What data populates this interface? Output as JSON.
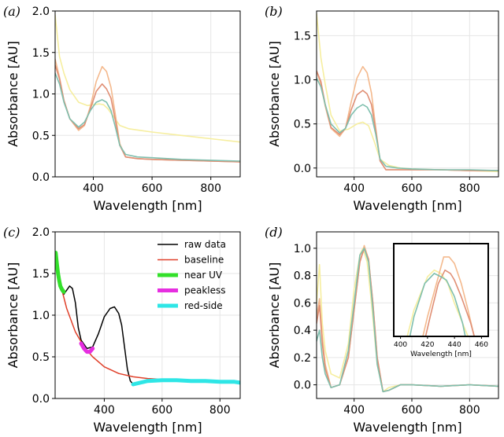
{
  "chart_data": [
    {
      "type": "line",
      "panel_label": "(a)",
      "xlabel": "Wavelength [nm]",
      "ylabel": "Absorbance [AU]",
      "xlim": [
        270,
        900
      ],
      "ylim": [
        0,
        2.0
      ],
      "xticks": [
        400,
        600,
        800
      ],
      "yticks": [
        0.0,
        0.5,
        1.0,
        1.5,
        2.0
      ],
      "grid": true,
      "series": [
        {
          "color": "#f6ee9f",
          "x": [
            270,
            285,
            300,
            320,
            350,
            380,
            400,
            420,
            435,
            450,
            470,
            490,
            520,
            560,
            600,
            700,
            800,
            900
          ],
          "y": [
            1.95,
            1.45,
            1.25,
            1.05,
            0.9,
            0.86,
            0.87,
            0.88,
            0.87,
            0.82,
            0.72,
            0.62,
            0.58,
            0.56,
            0.54,
            0.5,
            0.46,
            0.42
          ]
        },
        {
          "color": "#f4b98d",
          "x": [
            270,
            285,
            300,
            320,
            350,
            370,
            390,
            410,
            430,
            445,
            460,
            475,
            490,
            510,
            550,
            600,
            700,
            800,
            900
          ],
          "y": [
            1.42,
            1.2,
            0.92,
            0.7,
            0.56,
            0.62,
            0.85,
            1.15,
            1.33,
            1.27,
            1.08,
            0.75,
            0.4,
            0.24,
            0.22,
            0.21,
            0.2,
            0.19,
            0.18
          ]
        },
        {
          "color": "#e08f75",
          "x": [
            270,
            285,
            300,
            320,
            350,
            370,
            390,
            410,
            430,
            445,
            460,
            475,
            490,
            510,
            550,
            600,
            700,
            800,
            900
          ],
          "y": [
            1.35,
            1.18,
            0.92,
            0.7,
            0.58,
            0.63,
            0.82,
            1.03,
            1.12,
            1.06,
            0.95,
            0.68,
            0.38,
            0.24,
            0.22,
            0.21,
            0.2,
            0.19,
            0.18
          ]
        },
        {
          "color": "#7fbfae",
          "x": [
            270,
            285,
            300,
            320,
            350,
            370,
            390,
            410,
            430,
            445,
            460,
            475,
            490,
            510,
            550,
            600,
            700,
            800,
            900
          ],
          "y": [
            1.25,
            1.12,
            0.9,
            0.7,
            0.6,
            0.66,
            0.8,
            0.9,
            0.93,
            0.9,
            0.8,
            0.6,
            0.38,
            0.27,
            0.24,
            0.23,
            0.21,
            0.2,
            0.19
          ]
        }
      ]
    },
    {
      "type": "line",
      "panel_label": "(b)",
      "xlabel": "Wavelength [nm]",
      "ylabel": "Absorbance [AU]",
      "xlim": [
        270,
        900
      ],
      "ylim": [
        -0.1,
        1.78
      ],
      "xticks": [
        400,
        600,
        800
      ],
      "yticks": [
        0.0,
        0.5,
        1.0,
        1.5
      ],
      "grid": true,
      "series": [
        {
          "color": "#f6ee9f",
          "x": [
            270,
            285,
            300,
            320,
            350,
            380,
            410,
            430,
            450,
            470,
            490,
            520,
            560,
            600,
            700,
            800,
            900
          ],
          "y": [
            1.75,
            1.25,
            0.95,
            0.6,
            0.42,
            0.44,
            0.5,
            0.52,
            0.48,
            0.3,
            0.1,
            0.03,
            0.0,
            -0.01,
            -0.02,
            -0.03,
            -0.04
          ]
        },
        {
          "color": "#f4b98d",
          "x": [
            270,
            285,
            300,
            320,
            350,
            370,
            390,
            410,
            430,
            445,
            460,
            475,
            490,
            510,
            550,
            600,
            700,
            800,
            900
          ],
          "y": [
            1.1,
            0.95,
            0.7,
            0.45,
            0.36,
            0.45,
            0.75,
            1.02,
            1.15,
            1.08,
            0.85,
            0.45,
            0.08,
            -0.02,
            -0.02,
            -0.02,
            -0.02,
            -0.03,
            -0.03
          ]
        },
        {
          "color": "#e08f75",
          "x": [
            270,
            285,
            300,
            320,
            350,
            370,
            390,
            410,
            430,
            445,
            460,
            475,
            490,
            510,
            550,
            600,
            700,
            800,
            900
          ],
          "y": [
            1.1,
            0.98,
            0.72,
            0.46,
            0.38,
            0.45,
            0.66,
            0.83,
            0.88,
            0.84,
            0.72,
            0.42,
            0.08,
            -0.02,
            -0.02,
            -0.02,
            -0.02,
            -0.03,
            -0.03
          ]
        },
        {
          "color": "#7fbfae",
          "x": [
            270,
            285,
            300,
            320,
            350,
            370,
            390,
            410,
            430,
            445,
            460,
            475,
            490,
            510,
            550,
            600,
            700,
            800,
            900
          ],
          "y": [
            1.02,
            0.92,
            0.72,
            0.5,
            0.4,
            0.45,
            0.6,
            0.68,
            0.72,
            0.69,
            0.6,
            0.38,
            0.1,
            0.02,
            0.0,
            -0.01,
            -0.02,
            -0.02,
            -0.03
          ]
        }
      ]
    },
    {
      "type": "line",
      "panel_label": "(c)",
      "xlabel": "Wavelength [nm]",
      "ylabel": "Absorbance [AU]",
      "xlim": [
        230,
        870
      ],
      "ylim": [
        0,
        2.0
      ],
      "xticks": [
        400,
        600,
        800
      ],
      "yticks": [
        0.0,
        0.5,
        1.0,
        1.5,
        2.0
      ],
      "grid": true,
      "legend": "top-right",
      "series": [
        {
          "name": "raw data",
          "color": "#000000",
          "width": 1.5,
          "x": [
            232,
            240,
            250,
            260,
            270,
            280,
            290,
            300,
            310,
            320,
            340,
            360,
            380,
            400,
            420,
            435,
            450,
            460,
            470,
            480,
            490,
            500,
            520,
            560,
            600,
            700,
            800,
            870
          ],
          "y": [
            1.75,
            1.5,
            1.3,
            1.25,
            1.3,
            1.35,
            1.32,
            1.15,
            0.85,
            0.7,
            0.6,
            0.62,
            0.78,
            0.98,
            1.08,
            1.1,
            1.02,
            0.88,
            0.62,
            0.35,
            0.21,
            0.17,
            0.19,
            0.22,
            0.23,
            0.22,
            0.21,
            0.2
          ]
        },
        {
          "name": "baseline",
          "color": "#e0402a",
          "width": 1.5,
          "x": [
            232,
            250,
            270,
            300,
            330,
            360,
            400,
            450,
            500,
            550,
            600,
            700,
            800,
            870
          ],
          "y": [
            1.7,
            1.35,
            1.08,
            0.8,
            0.62,
            0.5,
            0.38,
            0.3,
            0.26,
            0.24,
            0.23,
            0.21,
            0.2,
            0.19
          ]
        },
        {
          "name": "near UV",
          "color": "#33e02a",
          "width": 5,
          "x": [
            232,
            236,
            240,
            244,
            248,
            252,
            256,
            260
          ],
          "y": [
            1.75,
            1.62,
            1.5,
            1.42,
            1.35,
            1.32,
            1.3,
            1.28
          ]
        },
        {
          "name": "peakless",
          "color": "#e62ee0",
          "width": 5,
          "x": [
            320,
            330,
            340,
            350,
            360
          ],
          "y": [
            0.66,
            0.6,
            0.56,
            0.56,
            0.6
          ]
        },
        {
          "name": "red-side",
          "color": "#2ee6e6",
          "width": 5,
          "x": [
            500,
            550,
            600,
            650,
            700,
            750,
            800,
            850,
            870
          ],
          "y": [
            0.17,
            0.21,
            0.22,
            0.22,
            0.21,
            0.21,
            0.2,
            0.2,
            0.19
          ]
        }
      ]
    },
    {
      "type": "line",
      "panel_label": "(d)",
      "xlabel": "Wavelength [nm]",
      "ylabel": "Absorbance [AU]",
      "xlim": [
        270,
        900
      ],
      "ylim": [
        -0.1,
        1.12
      ],
      "xticks": [
        400,
        600,
        800
      ],
      "yticks": [
        0.0,
        0.2,
        0.4,
        0.6,
        0.8,
        1.0
      ],
      "grid": true,
      "series": [
        {
          "color": "#f6ee9f",
          "x": [
            270,
            280,
            290,
            300,
            320,
            350,
            380,
            400,
            420,
            430,
            445,
            460,
            480,
            500,
            520,
            560,
            600,
            700,
            800,
            900
          ],
          "y": [
            0.6,
            0.88,
            0.45,
            0.25,
            0.08,
            0.05,
            0.3,
            0.7,
            0.95,
            1.0,
            0.9,
            0.6,
            0.15,
            -0.05,
            -0.02,
            0.0,
            0.0,
            -0.01,
            0.0,
            -0.01
          ]
        },
        {
          "color": "#f4b98d",
          "x": [
            270,
            280,
            290,
            300,
            320,
            350,
            380,
            400,
            420,
            435,
            450,
            465,
            480,
            500,
            520,
            560,
            600,
            700,
            800,
            900
          ],
          "y": [
            0.5,
            0.63,
            0.35,
            0.15,
            -0.02,
            0.0,
            0.2,
            0.55,
            0.9,
            1.02,
            0.92,
            0.6,
            0.2,
            -0.05,
            -0.04,
            0.0,
            0.0,
            -0.01,
            0.0,
            -0.01
          ]
        },
        {
          "color": "#e08f75",
          "x": [
            270,
            280,
            290,
            300,
            320,
            350,
            380,
            400,
            420,
            435,
            450,
            465,
            480,
            500,
            520,
            560,
            600,
            700,
            800,
            900
          ],
          "y": [
            0.45,
            0.58,
            0.3,
            0.12,
            -0.02,
            0.0,
            0.2,
            0.55,
            0.9,
            1.0,
            0.92,
            0.6,
            0.2,
            -0.05,
            -0.04,
            0.0,
            0.0,
            -0.01,
            0.0,
            -0.01
          ]
        },
        {
          "color": "#7fbfae",
          "x": [
            270,
            280,
            290,
            300,
            320,
            350,
            380,
            400,
            420,
            435,
            450,
            465,
            480,
            500,
            520,
            560,
            600,
            700,
            800,
            900
          ],
          "y": [
            0.32,
            0.4,
            0.2,
            0.08,
            -0.02,
            0.0,
            0.25,
            0.6,
            0.95,
            1.0,
            0.9,
            0.55,
            0.15,
            -0.05,
            -0.04,
            0.0,
            0.0,
            -0.01,
            0.0,
            -0.01
          ]
        }
      ],
      "inset": {
        "xlabel": "Wavelength [nm]",
        "xlim": [
          395,
          465
        ],
        "ylim": [
          0.9,
          1.04
        ],
        "xticks": [
          400,
          420,
          440,
          460
        ],
        "series": [
          {
            "color": "#f6ee9f",
            "x": [
              400,
              410,
              420,
              425,
              430,
              435,
              440,
              450,
              458
            ],
            "y": [
              0.86,
              0.94,
              0.99,
              1.0,
              0.995,
              0.98,
              0.95,
              0.9,
              0.86
            ]
          },
          {
            "color": "#f4b98d",
            "x": [
              412,
              420,
              428,
              432,
              436,
              440,
              445,
              450,
              458
            ],
            "y": [
              0.86,
              0.93,
              0.99,
              1.02,
              1.02,
              1.01,
              0.98,
              0.94,
              0.87
            ]
          },
          {
            "color": "#e08f75",
            "x": [
              414,
              422,
              428,
              433,
              437,
              440,
              445,
              452,
              460
            ],
            "y": [
              0.86,
              0.93,
              0.98,
              1.0,
              0.995,
              0.985,
              0.96,
              0.92,
              0.86
            ]
          },
          {
            "color": "#7fbfae",
            "x": [
              403,
              410,
              418,
              425,
              430,
              434,
              440,
              446,
              452
            ],
            "y": [
              0.86,
              0.93,
              0.98,
              0.995,
              0.99,
              0.985,
              0.96,
              0.92,
              0.86
            ]
          }
        ]
      }
    }
  ]
}
